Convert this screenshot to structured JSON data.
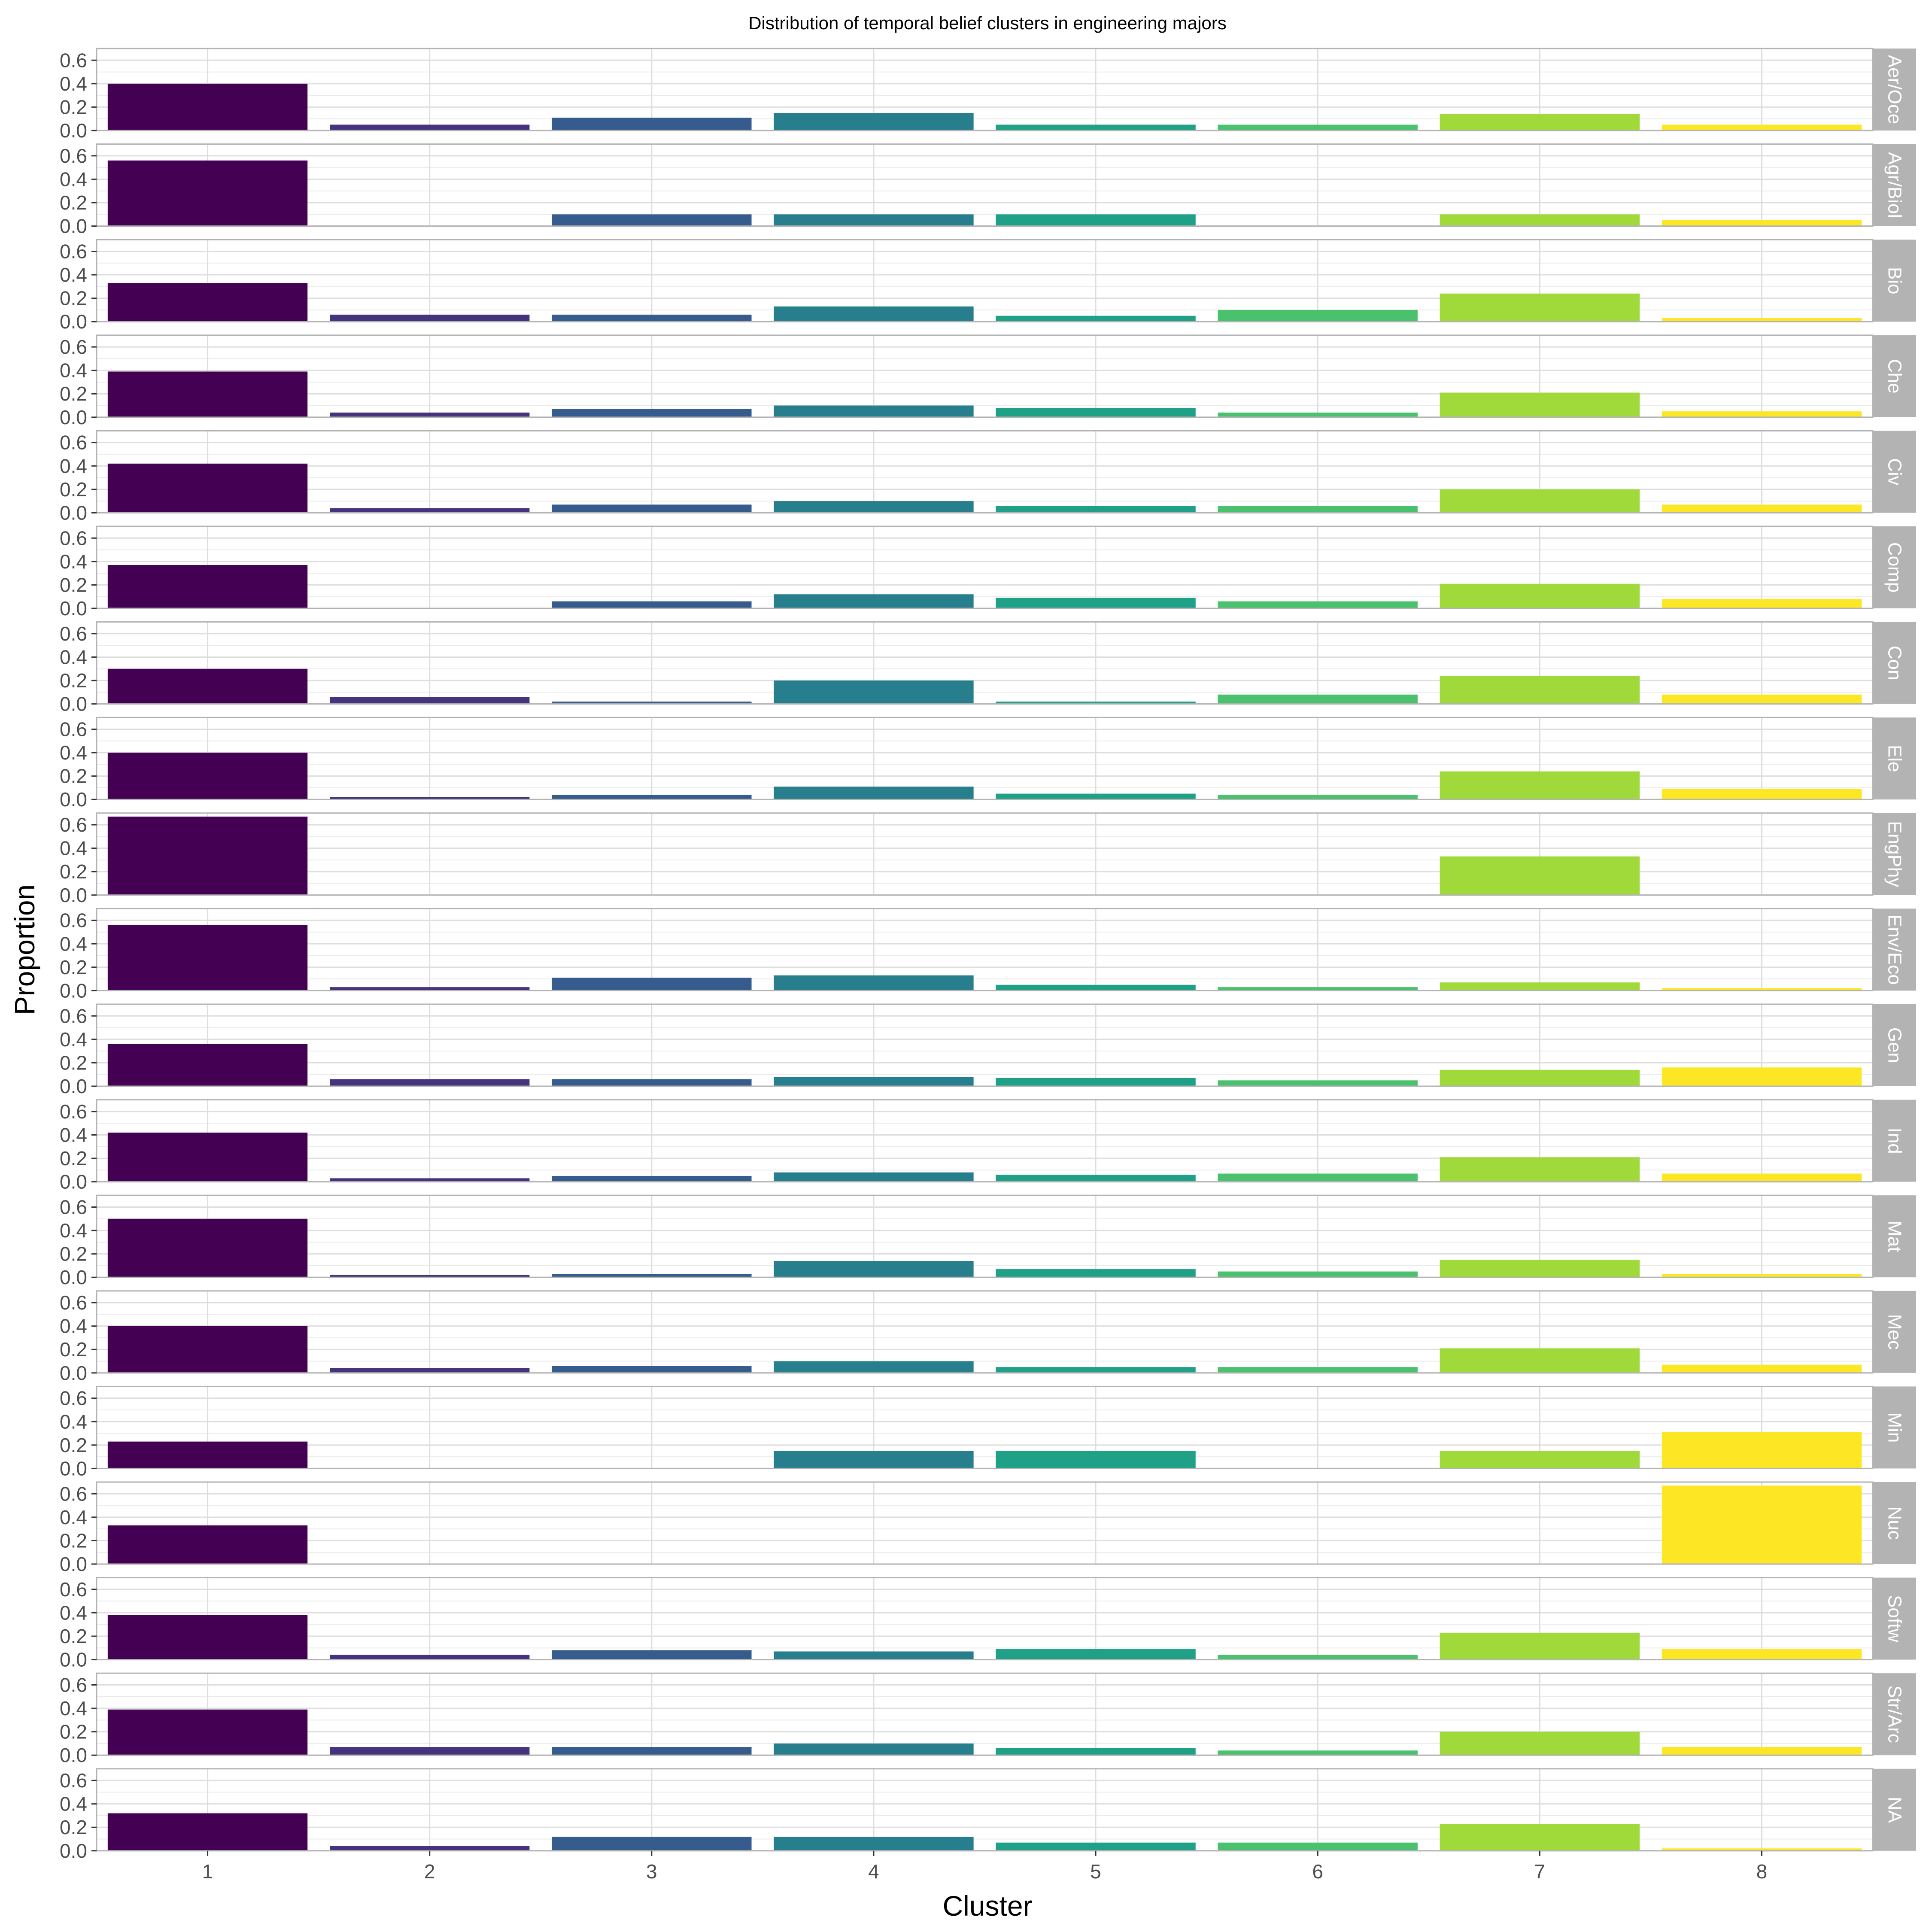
{
  "chart_data": {
    "type": "bar",
    "title": "Distribution of temporal belief clusters in engineering majors",
    "xlabel": "Cluster",
    "ylabel": "Proportion",
    "categories": [
      "1",
      "2",
      "3",
      "4",
      "5",
      "6",
      "7",
      "8"
    ],
    "yticks": [
      "0.0",
      "0.2",
      "0.4",
      "0.6"
    ],
    "ylim": [
      0,
      0.7
    ],
    "grid": true,
    "colors": [
      "#440154",
      "#46337e",
      "#365c8d",
      "#277f8e",
      "#1fa187",
      "#4ac16d",
      "#9fda3a",
      "#fde725"
    ],
    "facets": [
      {
        "name": "Aer/Oce",
        "values": [
          0.4,
          0.05,
          0.11,
          0.15,
          0.05,
          0.05,
          0.14,
          0.05
        ]
      },
      {
        "name": "Agr/Biol",
        "values": [
          0.56,
          0.0,
          0.1,
          0.1,
          0.1,
          0.0,
          0.1,
          0.05
        ]
      },
      {
        "name": "Bio",
        "values": [
          0.33,
          0.06,
          0.06,
          0.13,
          0.05,
          0.1,
          0.24,
          0.03
        ]
      },
      {
        "name": "Che",
        "values": [
          0.39,
          0.04,
          0.07,
          0.1,
          0.08,
          0.04,
          0.21,
          0.05
        ]
      },
      {
        "name": "Civ",
        "values": [
          0.42,
          0.04,
          0.07,
          0.1,
          0.06,
          0.06,
          0.2,
          0.07
        ]
      },
      {
        "name": "Comp",
        "values": [
          0.37,
          0.0,
          0.06,
          0.12,
          0.09,
          0.06,
          0.21,
          0.08
        ]
      },
      {
        "name": "Con",
        "values": [
          0.3,
          0.06,
          0.02,
          0.2,
          0.02,
          0.08,
          0.24,
          0.08
        ]
      },
      {
        "name": "Ele",
        "values": [
          0.4,
          0.02,
          0.04,
          0.11,
          0.05,
          0.04,
          0.24,
          0.09
        ]
      },
      {
        "name": "EngPhy",
        "values": [
          0.67,
          0.0,
          0.0,
          0.0,
          0.0,
          0.0,
          0.33,
          0.0
        ]
      },
      {
        "name": "Env/Eco",
        "values": [
          0.56,
          0.03,
          0.11,
          0.13,
          0.05,
          0.03,
          0.07,
          0.02
        ]
      },
      {
        "name": "Gen",
        "values": [
          0.36,
          0.06,
          0.06,
          0.08,
          0.07,
          0.05,
          0.14,
          0.16
        ]
      },
      {
        "name": "Ind",
        "values": [
          0.42,
          0.03,
          0.05,
          0.08,
          0.06,
          0.07,
          0.21,
          0.07
        ]
      },
      {
        "name": "Mat",
        "values": [
          0.5,
          0.02,
          0.03,
          0.14,
          0.07,
          0.05,
          0.15,
          0.03
        ]
      },
      {
        "name": "Mec",
        "values": [
          0.4,
          0.04,
          0.06,
          0.1,
          0.05,
          0.05,
          0.21,
          0.07
        ]
      },
      {
        "name": "Min",
        "values": [
          0.23,
          0.0,
          0.0,
          0.15,
          0.15,
          0.0,
          0.15,
          0.31
        ]
      },
      {
        "name": "Nuc",
        "values": [
          0.33,
          0.0,
          0.0,
          0.0,
          0.0,
          0.0,
          0.0,
          0.67
        ]
      },
      {
        "name": "Softw",
        "values": [
          0.38,
          0.04,
          0.08,
          0.07,
          0.09,
          0.04,
          0.23,
          0.09
        ]
      },
      {
        "name": "Str/Arc",
        "values": [
          0.39,
          0.07,
          0.07,
          0.1,
          0.06,
          0.04,
          0.2,
          0.07
        ]
      },
      {
        "name": "NA",
        "values": [
          0.32,
          0.04,
          0.12,
          0.12,
          0.07,
          0.07,
          0.23,
          0.02
        ]
      }
    ]
  }
}
